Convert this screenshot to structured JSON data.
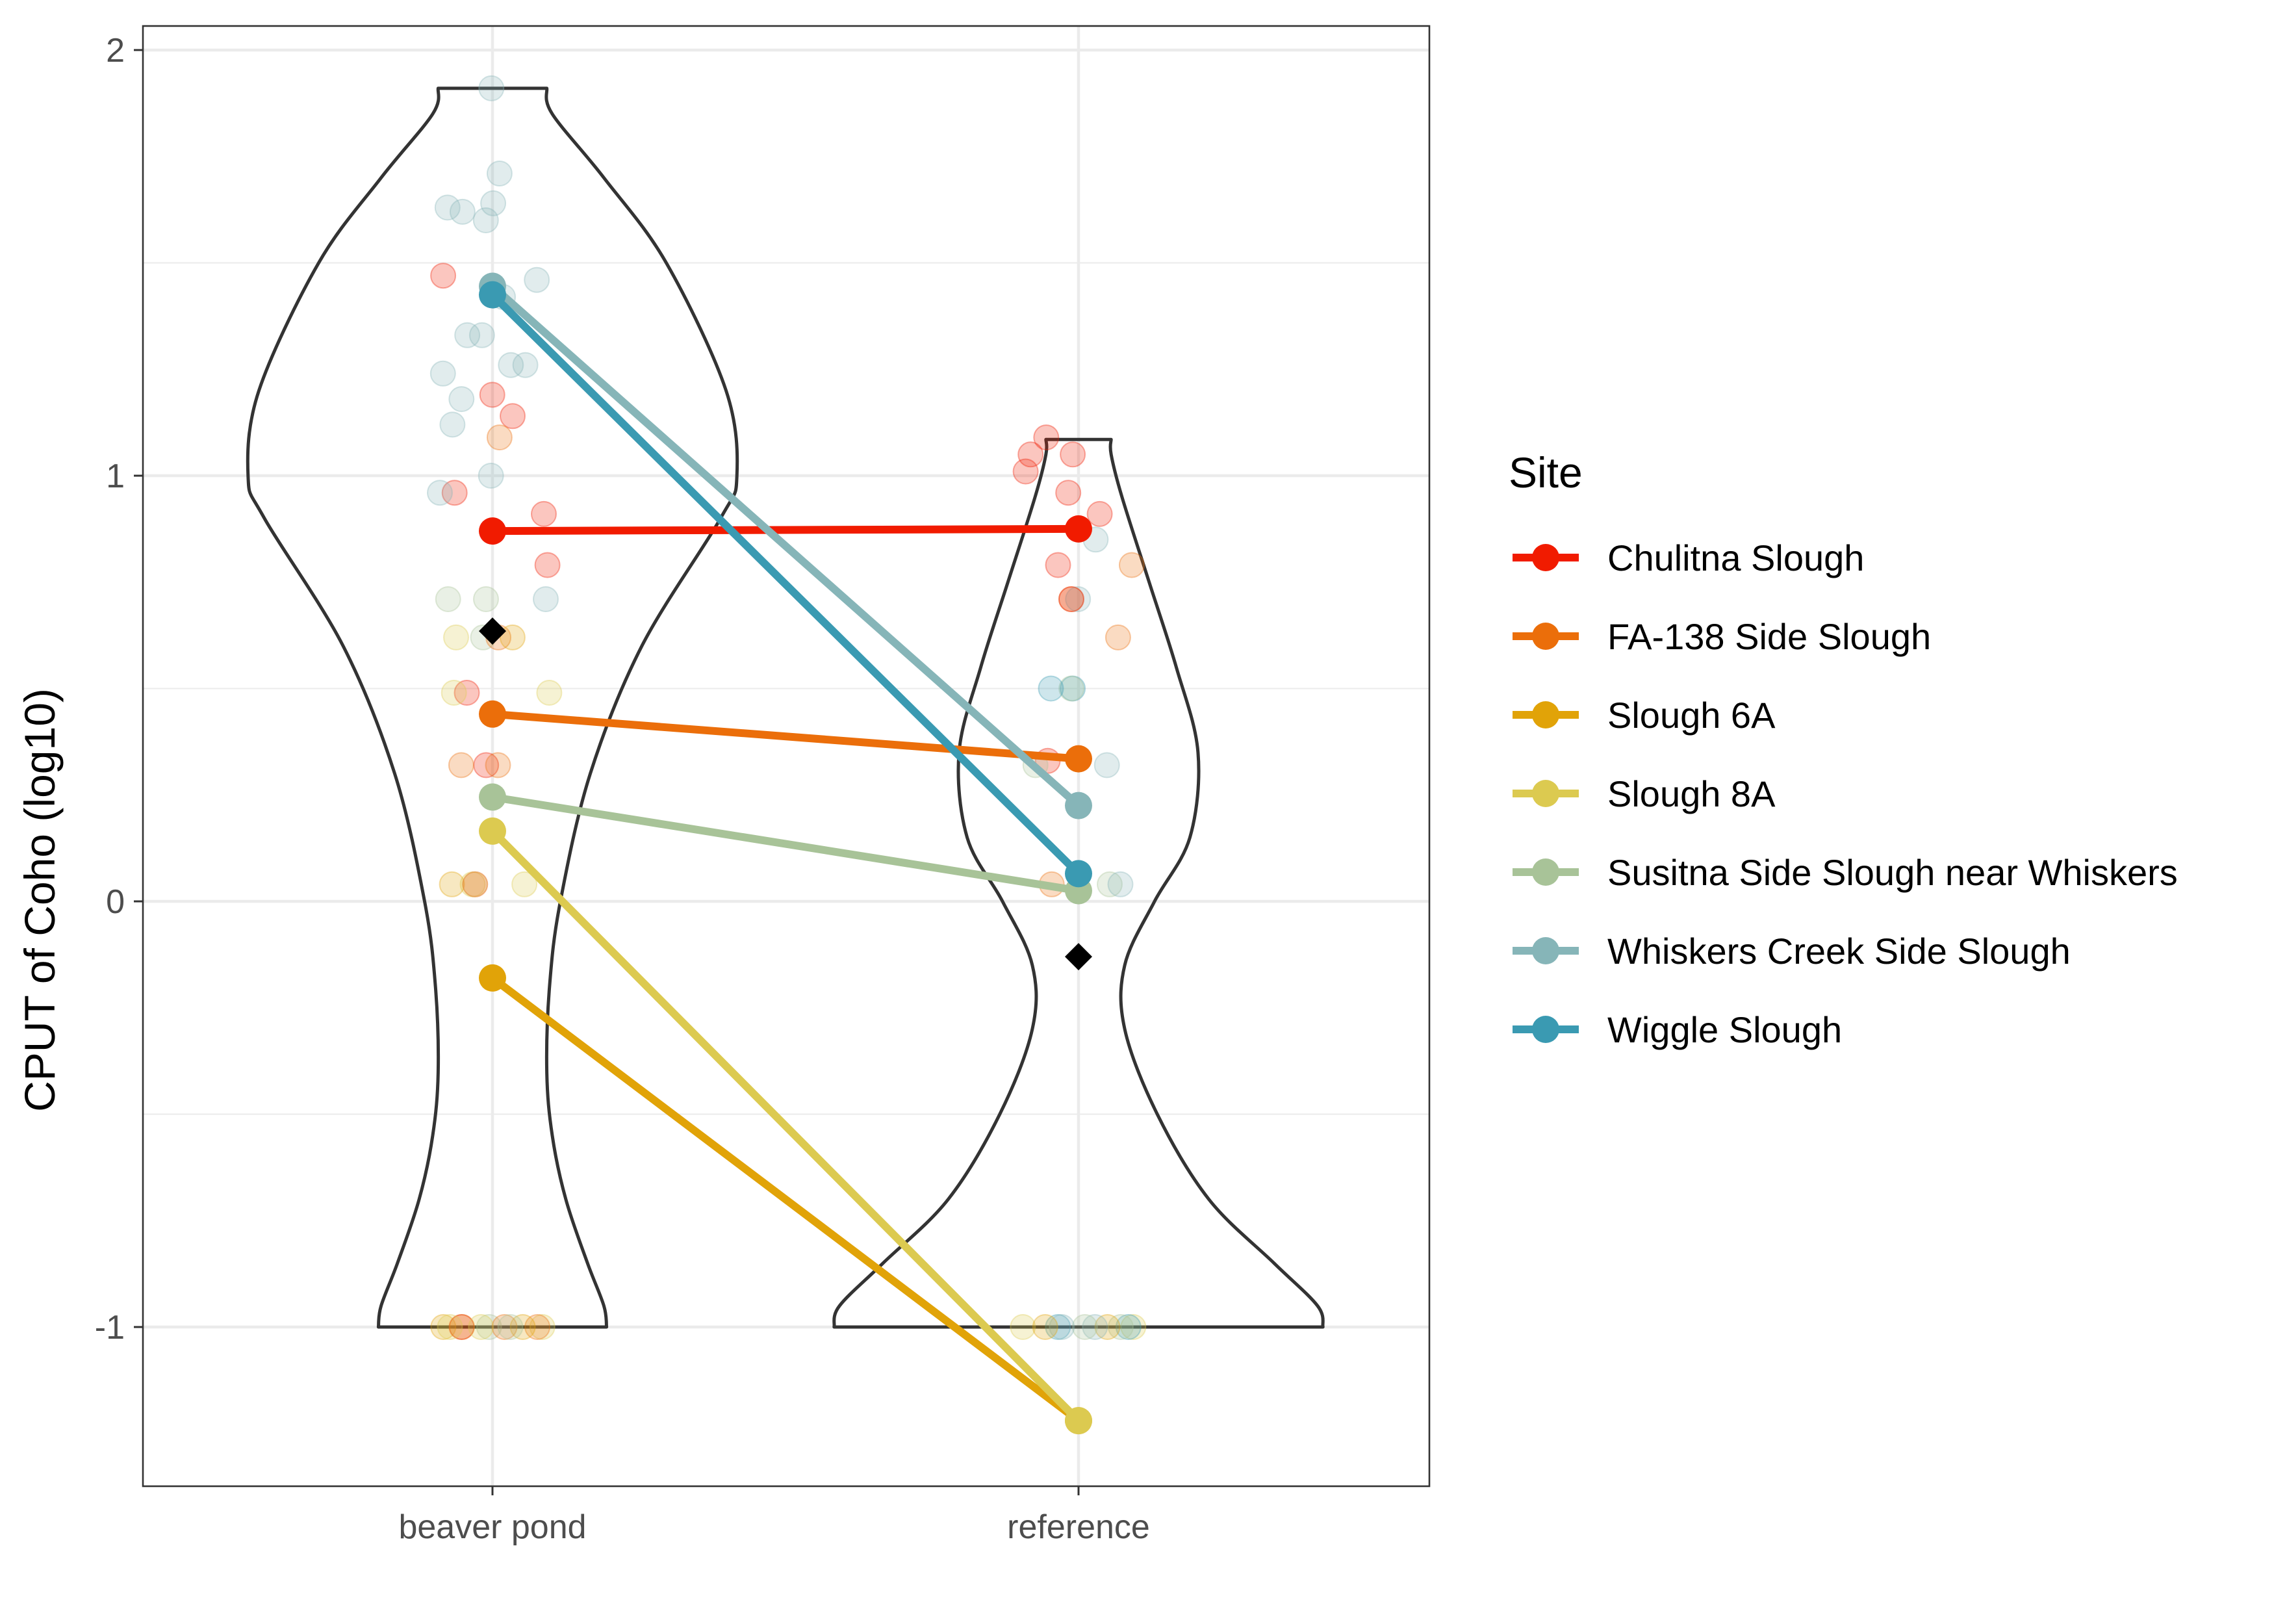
{
  "chart_data": {
    "type": "violin-paired-points",
    "title": "",
    "xlabel": "",
    "ylabel": "CPUT of Coho (log10)",
    "categories": [
      "beaver pond",
      "reference"
    ],
    "y_ticks": [
      2,
      1,
      0,
      -1
    ],
    "y_tick_labels": [
      "2",
      "1",
      "0",
      "-1"
    ],
    "ylim": [
      -1.37,
      2.06
    ],
    "grid": true,
    "legend_title": "Site",
    "legend_position": "right",
    "series": [
      {
        "name": "Chulitna Slough",
        "color": "#F11B00",
        "values": [
          0.87,
          0.875
        ]
      },
      {
        "name": "FA-138 Side Slough",
        "color": "#EB6E0A",
        "values": [
          0.44,
          0.335
        ]
      },
      {
        "name": "Slough 6A",
        "color": "#E1A308",
        "values": [
          -0.18,
          -1.22
        ]
      },
      {
        "name": "Slough 8A",
        "color": "#DCCA50",
        "values": [
          0.165,
          -1.22
        ]
      },
      {
        "name": "Susitna Side Slough near Whiskers",
        "color": "#A8C398",
        "values": [
          0.245,
          0.025
        ]
      },
      {
        "name": "Whiskers Creek Side Slough",
        "color": "#86B5B8",
        "values": [
          1.445,
          0.225
        ]
      },
      {
        "name": "Wiggle Slough",
        "color": "#3A9AB2",
        "values": [
          1.425,
          0.065
        ]
      }
    ],
    "means": [
      0.635,
      -0.13
    ],
    "violins": [
      {
        "category": "beaver pond",
        "y_min": -1.0,
        "y_max": 1.91,
        "profile": [
          [
            -1.0,
            0.42
          ],
          [
            -0.95,
            0.41
          ],
          [
            -0.85,
            0.35
          ],
          [
            -0.7,
            0.27
          ],
          [
            -0.55,
            0.22
          ],
          [
            -0.4,
            0.2
          ],
          [
            -0.2,
            0.21
          ],
          [
            0.0,
            0.25
          ],
          [
            0.3,
            0.36
          ],
          [
            0.6,
            0.55
          ],
          [
            0.9,
            0.84
          ],
          [
            1.0,
            0.9
          ],
          [
            1.2,
            0.86
          ],
          [
            1.5,
            0.64
          ],
          [
            1.7,
            0.41
          ],
          [
            1.85,
            0.22
          ],
          [
            1.91,
            0.2
          ]
        ]
      },
      {
        "category": "reference",
        "y_min": -1.0,
        "y_max": 1.085,
        "profile": [
          [
            -1.0,
            0.9
          ],
          [
            -0.95,
            0.88
          ],
          [
            -0.85,
            0.72
          ],
          [
            -0.7,
            0.48
          ],
          [
            -0.5,
            0.29
          ],
          [
            -0.3,
            0.17
          ],
          [
            -0.15,
            0.17
          ],
          [
            0.0,
            0.28
          ],
          [
            0.15,
            0.41
          ],
          [
            0.35,
            0.44
          ],
          [
            0.55,
            0.36
          ],
          [
            0.75,
            0.26
          ],
          [
            0.95,
            0.16
          ],
          [
            1.05,
            0.12
          ],
          [
            1.085,
            0.12
          ]
        ]
      }
    ],
    "jitter_points": {
      "beaver pond": [
        {
          "y": 1.91,
          "site": "Whiskers Creek Side Slough"
        },
        {
          "y": 1.71,
          "site": "Whiskers Creek Side Slough"
        },
        {
          "y": 1.63,
          "site": "Whiskers Creek Side Slough"
        },
        {
          "y": 1.62,
          "site": "Whiskers Creek Side Slough"
        },
        {
          "y": 1.6,
          "site": "Whiskers Creek Side Slough"
        },
        {
          "y": 1.64,
          "site": "Whiskers Creek Side Slough"
        },
        {
          "y": 1.47,
          "site": "Chulitna Slough"
        },
        {
          "y": 1.46,
          "site": "Whiskers Creek Side Slough"
        },
        {
          "y": 1.42,
          "site": "Whiskers Creek Side Slough"
        },
        {
          "y": 1.33,
          "site": "Whiskers Creek Side Slough"
        },
        {
          "y": 1.33,
          "site": "Whiskers Creek Side Slough"
        },
        {
          "y": 1.26,
          "site": "Whiskers Creek Side Slough"
        },
        {
          "y": 1.26,
          "site": "Whiskers Creek Side Slough"
        },
        {
          "y": 1.24,
          "site": "Whiskers Creek Side Slough"
        },
        {
          "y": 1.19,
          "site": "Chulitna Slough"
        },
        {
          "y": 1.18,
          "site": "Whiskers Creek Side Slough"
        },
        {
          "y": 1.14,
          "site": "Chulitna Slough"
        },
        {
          "y": 1.12,
          "site": "Whiskers Creek Side Slough"
        },
        {
          "y": 1.09,
          "site": "FA-138 Side Slough"
        },
        {
          "y": 1.0,
          "site": "Whiskers Creek Side Slough"
        },
        {
          "y": 0.96,
          "site": "Chulitna Slough"
        },
        {
          "y": 0.96,
          "site": "Whiskers Creek Side Slough"
        },
        {
          "y": 0.91,
          "site": "Chulitna Slough"
        },
        {
          "y": 0.79,
          "site": "Chulitna Slough"
        },
        {
          "y": 0.71,
          "site": "Susitna Side Slough near Whiskers"
        },
        {
          "y": 0.71,
          "site": "Susitna Side Slough near Whiskers"
        },
        {
          "y": 0.71,
          "site": "Whiskers Creek Side Slough"
        },
        {
          "y": 0.62,
          "site": "Slough 8A"
        },
        {
          "y": 0.62,
          "site": "Susitna Side Slough near Whiskers"
        },
        {
          "y": 0.62,
          "site": "FA-138 Side Slough"
        },
        {
          "y": 0.62,
          "site": "Slough 6A"
        },
        {
          "y": 0.49,
          "site": "Chulitna Slough"
        },
        {
          "y": 0.49,
          "site": "Slough 8A"
        },
        {
          "y": 0.49,
          "site": "Slough 8A"
        },
        {
          "y": 0.32,
          "site": "Chulitna Slough"
        },
        {
          "y": 0.32,
          "site": "FA-138 Side Slough"
        },
        {
          "y": 0.32,
          "site": "FA-138 Side Slough"
        },
        {
          "y": 0.04,
          "site": "Slough 8A"
        },
        {
          "y": 0.04,
          "site": "Slough 6A"
        },
        {
          "y": 0.04,
          "site": "Slough 8A"
        },
        {
          "y": 0.04,
          "site": "Chulitna Slough"
        },
        {
          "y": 0.04,
          "site": "Slough 8A"
        },
        {
          "y": -1.0,
          "site": "Slough 6A"
        },
        {
          "y": -1.0,
          "site": "Slough 8A"
        },
        {
          "y": -1.0,
          "site": "Slough 6A"
        },
        {
          "y": -1.0,
          "site": "FA-138 Side Slough"
        },
        {
          "y": -1.0,
          "site": "Susitna Side Slough near Whiskers"
        },
        {
          "y": -1.0,
          "site": "Chulitna Slough"
        },
        {
          "y": -1.0,
          "site": "FA-138 Side Slough"
        },
        {
          "y": -1.0,
          "site": "Slough 8A"
        },
        {
          "y": -1.0,
          "site": "Slough 6A"
        },
        {
          "y": -1.0,
          "site": "Susitna Side Slough near Whiskers"
        },
        {
          "y": -1.0,
          "site": "Slough 8A"
        }
      ],
      "reference": [
        {
          "y": 1.09,
          "site": "Chulitna Slough"
        },
        {
          "y": 1.05,
          "site": "Chulitna Slough"
        },
        {
          "y": 1.05,
          "site": "Chulitna Slough"
        },
        {
          "y": 1.01,
          "site": "Chulitna Slough"
        },
        {
          "y": 0.96,
          "site": "Chulitna Slough"
        },
        {
          "y": 0.91,
          "site": "Chulitna Slough"
        },
        {
          "y": 0.85,
          "site": "Whiskers Creek Side Slough"
        },
        {
          "y": 0.79,
          "site": "FA-138 Side Slough"
        },
        {
          "y": 0.79,
          "site": "Chulitna Slough"
        },
        {
          "y": 0.71,
          "site": "FA-138 Side Slough"
        },
        {
          "y": 0.71,
          "site": "Whiskers Creek Side Slough"
        },
        {
          "y": 0.71,
          "site": "Chulitna Slough"
        },
        {
          "y": 0.62,
          "site": "FA-138 Side Slough"
        },
        {
          "y": 0.5,
          "site": "Wiggle Slough"
        },
        {
          "y": 0.5,
          "site": "Susitna Side Slough near Whiskers"
        },
        {
          "y": 0.5,
          "site": "Wiggle Slough"
        },
        {
          "y": 0.33,
          "site": "Chulitna Slough"
        },
        {
          "y": 0.32,
          "site": "Whiskers Creek Side Slough"
        },
        {
          "y": 0.32,
          "site": "Susitna Side Slough near Whiskers"
        },
        {
          "y": 0.04,
          "site": "FA-138 Side Slough"
        },
        {
          "y": 0.04,
          "site": "Susitna Side Slough near Whiskers"
        },
        {
          "y": 0.04,
          "site": "Whiskers Creek Side Slough"
        },
        {
          "y": -1.0,
          "site": "Slough 8A"
        },
        {
          "y": -1.0,
          "site": "Wiggle Slough"
        },
        {
          "y": -1.0,
          "site": "Susitna Side Slough near Whiskers"
        },
        {
          "y": -1.0,
          "site": "Slough 6A"
        },
        {
          "y": -1.0,
          "site": "Whiskers Creek Side Slough"
        },
        {
          "y": -1.0,
          "site": "Susitna Side Slough near Whiskers"
        },
        {
          "y": -1.0,
          "site": "Slough 8A"
        },
        {
          "y": -1.0,
          "site": "Wiggle Slough"
        },
        {
          "y": -1.0,
          "site": "Whiskers Creek Side Slough"
        },
        {
          "y": -1.0,
          "site": "Slough 6A"
        }
      ]
    }
  }
}
